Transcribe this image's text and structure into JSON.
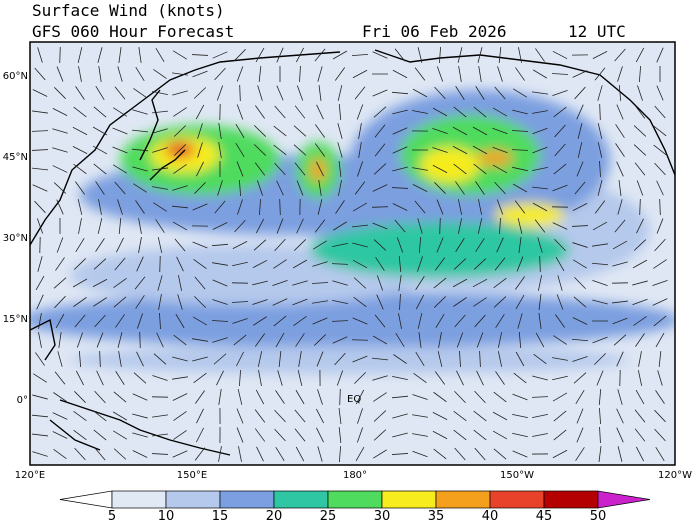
{
  "header": {
    "title": "Surface Wind (knots)",
    "subtitle": "GFS 060 Hour Forecast",
    "date": "Fri 06 Feb 2026",
    "time": "12 UTC"
  },
  "map": {
    "lat_labels": [
      "60°N",
      "45°N",
      "30°N",
      "15°N",
      "0°"
    ],
    "lon_labels": [
      "120°E",
      "150°E",
      "180°",
      "150°W",
      "120°W"
    ],
    "equator_label": "EQ"
  },
  "colorbar": {
    "labels": [
      "5",
      "10",
      "15",
      "20",
      "25",
      "30",
      "35",
      "40",
      "45",
      "50"
    ],
    "colors": [
      "#ffffff",
      "#e1e9f5",
      "#b5c9ec",
      "#7b9fe0",
      "#2fc7a3",
      "#4fdb5d",
      "#f6ec1e",
      "#f5a01c",
      "#e8432a",
      "#b40000",
      "#cc22cc"
    ]
  }
}
